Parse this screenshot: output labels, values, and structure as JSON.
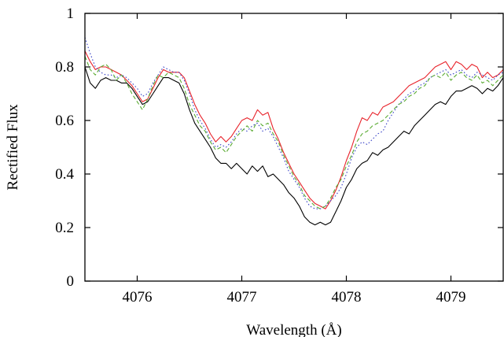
{
  "chart_data": {
    "type": "line",
    "title": "",
    "xlabel": "Wavelength (Å)",
    "ylabel": "Rectified Flux",
    "xlim": [
      4075.5,
      4079.5
    ],
    "ylim": [
      0,
      1
    ],
    "xticks": [
      4076,
      4077,
      4078,
      4079
    ],
    "xtick_labels": [
      "4076",
      "4077",
      "4078",
      "4079"
    ],
    "yticks": [
      0,
      0.2,
      0.4,
      0.6,
      0.8,
      1
    ],
    "ytick_labels": [
      "0",
      "0.2",
      "0.4",
      "0.6",
      "0.8",
      "1"
    ],
    "grid": false,
    "legend": "none",
    "series": [
      {
        "color": "#000000",
        "style": "solid",
        "x": [
          4075.5,
          4075.55,
          4075.6,
          4075.65,
          4075.7,
          4075.75,
          4075.8,
          4075.85,
          4075.9,
          4075.95,
          4076.0,
          4076.05,
          4076.1,
          4076.15,
          4076.2,
          4076.25,
          4076.3,
          4076.35,
          4076.4,
          4076.45,
          4076.5,
          4076.55,
          4076.6,
          4076.65,
          4076.7,
          4076.75,
          4076.8,
          4076.85,
          4076.9,
          4076.95,
          4077.0,
          4077.05,
          4077.1,
          4077.15,
          4077.2,
          4077.25,
          4077.3,
          4077.35,
          4077.4,
          4077.45,
          4077.5,
          4077.55,
          4077.6,
          4077.65,
          4077.7,
          4077.75,
          4077.8,
          4077.85,
          4077.9,
          4077.95,
          4078.0,
          4078.05,
          4078.1,
          4078.15,
          4078.2,
          4078.25,
          4078.3,
          4078.35,
          4078.4,
          4078.45,
          4078.5,
          4078.55,
          4078.6,
          4078.65,
          4078.7,
          4078.75,
          4078.8,
          4078.85,
          4078.9,
          4078.95,
          4079.0,
          4079.05,
          4079.1,
          4079.15,
          4079.2,
          4079.25,
          4079.3,
          4079.35,
          4079.4,
          4079.45,
          4079.5
        ],
        "y": [
          0.8,
          0.74,
          0.72,
          0.75,
          0.76,
          0.75,
          0.75,
          0.74,
          0.74,
          0.72,
          0.69,
          0.66,
          0.67,
          0.7,
          0.73,
          0.76,
          0.76,
          0.75,
          0.74,
          0.7,
          0.64,
          0.59,
          0.56,
          0.53,
          0.5,
          0.46,
          0.44,
          0.44,
          0.42,
          0.44,
          0.42,
          0.4,
          0.43,
          0.41,
          0.43,
          0.39,
          0.4,
          0.38,
          0.36,
          0.33,
          0.31,
          0.28,
          0.24,
          0.22,
          0.21,
          0.22,
          0.21,
          0.22,
          0.26,
          0.3,
          0.35,
          0.38,
          0.42,
          0.44,
          0.45,
          0.48,
          0.47,
          0.49,
          0.5,
          0.52,
          0.54,
          0.56,
          0.55,
          0.58,
          0.6,
          0.62,
          0.64,
          0.66,
          0.67,
          0.66,
          0.69,
          0.71,
          0.71,
          0.72,
          0.73,
          0.72,
          0.7,
          0.72,
          0.71,
          0.73,
          0.76
        ]
      },
      {
        "color": "#e8232b",
        "style": "solid",
        "x": [
          4075.5,
          4075.55,
          4075.6,
          4075.65,
          4075.7,
          4075.75,
          4075.8,
          4075.85,
          4075.9,
          4075.95,
          4076.0,
          4076.05,
          4076.1,
          4076.15,
          4076.2,
          4076.25,
          4076.3,
          4076.35,
          4076.4,
          4076.45,
          4076.5,
          4076.55,
          4076.6,
          4076.65,
          4076.7,
          4076.75,
          4076.8,
          4076.85,
          4076.9,
          4076.95,
          4077.0,
          4077.05,
          4077.1,
          4077.15,
          4077.2,
          4077.25,
          4077.3,
          4077.35,
          4077.4,
          4077.45,
          4077.5,
          4077.55,
          4077.6,
          4077.65,
          4077.7,
          4077.75,
          4077.8,
          4077.85,
          4077.9,
          4077.95,
          4078.0,
          4078.05,
          4078.1,
          4078.15,
          4078.2,
          4078.25,
          4078.3,
          4078.35,
          4078.4,
          4078.45,
          4078.5,
          4078.55,
          4078.6,
          4078.65,
          4078.7,
          4078.75,
          4078.8,
          4078.85,
          4078.9,
          4078.95,
          4079.0,
          4079.05,
          4079.1,
          4079.15,
          4079.2,
          4079.25,
          4079.3,
          4079.35,
          4079.4,
          4079.45,
          4079.5
        ],
        "y": [
          0.86,
          0.82,
          0.79,
          0.8,
          0.8,
          0.79,
          0.78,
          0.77,
          0.75,
          0.73,
          0.7,
          0.67,
          0.68,
          0.72,
          0.76,
          0.79,
          0.78,
          0.78,
          0.78,
          0.76,
          0.71,
          0.66,
          0.62,
          0.59,
          0.55,
          0.52,
          0.54,
          0.52,
          0.54,
          0.57,
          0.6,
          0.61,
          0.6,
          0.64,
          0.62,
          0.63,
          0.57,
          0.53,
          0.48,
          0.44,
          0.4,
          0.37,
          0.34,
          0.31,
          0.29,
          0.28,
          0.27,
          0.3,
          0.34,
          0.39,
          0.45,
          0.5,
          0.56,
          0.61,
          0.6,
          0.63,
          0.62,
          0.65,
          0.66,
          0.67,
          0.69,
          0.71,
          0.73,
          0.74,
          0.75,
          0.76,
          0.78,
          0.8,
          0.81,
          0.82,
          0.79,
          0.82,
          0.81,
          0.79,
          0.81,
          0.8,
          0.76,
          0.78,
          0.76,
          0.77,
          0.79
        ]
      },
      {
        "color": "#3c46c8",
        "style": "dotted",
        "x": [
          4075.5,
          4075.55,
          4075.6,
          4075.65,
          4075.7,
          4075.75,
          4075.8,
          4075.85,
          4075.9,
          4075.95,
          4076.0,
          4076.05,
          4076.1,
          4076.15,
          4076.2,
          4076.25,
          4076.3,
          4076.35,
          4076.4,
          4076.45,
          4076.5,
          4076.55,
          4076.6,
          4076.65,
          4076.7,
          4076.75,
          4076.8,
          4076.85,
          4076.9,
          4076.95,
          4077.0,
          4077.05,
          4077.1,
          4077.15,
          4077.2,
          4077.25,
          4077.3,
          4077.35,
          4077.4,
          4077.45,
          4077.5,
          4077.55,
          4077.6,
          4077.65,
          4077.7,
          4077.75,
          4077.8,
          4077.85,
          4077.9,
          4077.95,
          4078.0,
          4078.05,
          4078.1,
          4078.15,
          4078.2,
          4078.25,
          4078.3,
          4078.35,
          4078.4,
          4078.45,
          4078.5,
          4078.55,
          4078.6,
          4078.65,
          4078.7,
          4078.75,
          4078.8,
          4078.85,
          4078.9,
          4078.95,
          4079.0,
          4079.05,
          4079.1,
          4079.15,
          4079.2,
          4079.25,
          4079.3,
          4079.35,
          4079.4,
          4079.45,
          4079.5
        ],
        "y": [
          0.91,
          0.85,
          0.8,
          0.78,
          0.77,
          0.77,
          0.76,
          0.77,
          0.76,
          0.74,
          0.72,
          0.69,
          0.7,
          0.74,
          0.77,
          0.8,
          0.79,
          0.78,
          0.78,
          0.75,
          0.7,
          0.64,
          0.6,
          0.57,
          0.53,
          0.5,
          0.51,
          0.5,
          0.52,
          0.55,
          0.57,
          0.56,
          0.58,
          0.59,
          0.56,
          0.57,
          0.54,
          0.5,
          0.46,
          0.41,
          0.38,
          0.35,
          0.31,
          0.28,
          0.27,
          0.27,
          0.28,
          0.3,
          0.32,
          0.35,
          0.4,
          0.46,
          0.5,
          0.52,
          0.51,
          0.53,
          0.55,
          0.56,
          0.6,
          0.63,
          0.66,
          0.68,
          0.7,
          0.71,
          0.73,
          0.74,
          0.76,
          0.77,
          0.78,
          0.79,
          0.77,
          0.78,
          0.79,
          0.77,
          0.76,
          0.78,
          0.77,
          0.76,
          0.75,
          0.77,
          0.78
        ]
      },
      {
        "color": "#5aab32",
        "style": "dashed",
        "x": [
          4075.5,
          4075.55,
          4075.6,
          4075.65,
          4075.7,
          4075.75,
          4075.8,
          4075.85,
          4075.9,
          4075.95,
          4076.0,
          4076.05,
          4076.1,
          4076.15,
          4076.2,
          4076.25,
          4076.3,
          4076.35,
          4076.4,
          4076.45,
          4076.5,
          4076.55,
          4076.6,
          4076.65,
          4076.7,
          4076.75,
          4076.8,
          4076.85,
          4076.9,
          4076.95,
          4077.0,
          4077.05,
          4077.1,
          4077.15,
          4077.2,
          4077.25,
          4077.3,
          4077.35,
          4077.4,
          4077.45,
          4077.5,
          4077.55,
          4077.6,
          4077.65,
          4077.7,
          4077.75,
          4077.8,
          4077.85,
          4077.9,
          4077.95,
          4078.0,
          4078.05,
          4078.1,
          4078.15,
          4078.2,
          4078.25,
          4078.3,
          4078.35,
          4078.4,
          4078.45,
          4078.5,
          4078.55,
          4078.6,
          4078.65,
          4078.7,
          4078.75,
          4078.8,
          4078.85,
          4078.9,
          4078.95,
          4079.0,
          4079.05,
          4079.1,
          4079.15,
          4079.2,
          4079.25,
          4079.3,
          4079.35,
          4079.4,
          4079.45,
          4079.5
        ],
        "y": [
          0.84,
          0.79,
          0.77,
          0.8,
          0.81,
          0.79,
          0.75,
          0.77,
          0.74,
          0.7,
          0.67,
          0.64,
          0.68,
          0.73,
          0.77,
          0.76,
          0.78,
          0.77,
          0.76,
          0.72,
          0.66,
          0.62,
          0.58,
          0.56,
          0.52,
          0.49,
          0.5,
          0.48,
          0.51,
          0.54,
          0.56,
          0.58,
          0.56,
          0.6,
          0.58,
          0.59,
          0.55,
          0.52,
          0.47,
          0.43,
          0.39,
          0.36,
          0.32,
          0.3,
          0.28,
          0.27,
          0.28,
          0.31,
          0.35,
          0.38,
          0.43,
          0.47,
          0.52,
          0.55,
          0.56,
          0.58,
          0.59,
          0.6,
          0.62,
          0.64,
          0.66,
          0.67,
          0.69,
          0.7,
          0.72,
          0.73,
          0.76,
          0.77,
          0.76,
          0.78,
          0.75,
          0.77,
          0.78,
          0.76,
          0.75,
          0.77,
          0.74,
          0.75,
          0.73,
          0.75,
          0.77
        ]
      }
    ]
  }
}
